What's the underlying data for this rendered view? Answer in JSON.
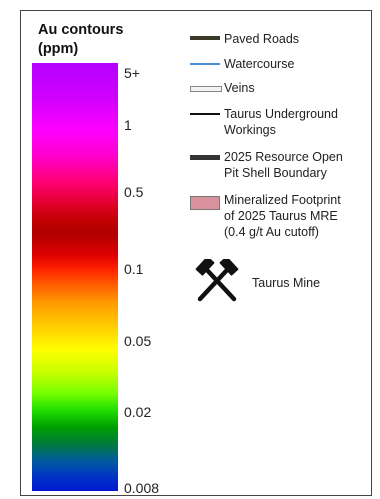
{
  "scale": {
    "title": "Au contours\n(ppm)",
    "ticks": [
      "5+",
      "1",
      "0.5",
      "0.1",
      "0.05",
      "0.02",
      "0.008"
    ]
  },
  "legend": {
    "items": [
      {
        "label": "Paved Roads",
        "icon": "paved-road-line",
        "color": "#3b3a28"
      },
      {
        "label": "Watercourse",
        "icon": "watercourse-line",
        "color": "#4a90d9"
      },
      {
        "label": "Veins",
        "icon": "vein-line",
        "color": "#e8e8e8"
      },
      {
        "label": "Taurus Underground\nWorkings",
        "icon": "underground-workings-line",
        "color": "#111111"
      },
      {
        "label": "2025 Resource Open\nPit Shell Boundary",
        "icon": "pit-shell-line",
        "color": "#333333"
      },
      {
        "label": "Mineralized Footprint\nof 2025 Taurus MRE\n(0.4 g/t Au cutoff)",
        "icon": "footprint-polygon",
        "color": "#d9919b"
      },
      {
        "label": "Taurus Mine",
        "icon": "crossed-hammers-icon",
        "color": "#111111"
      }
    ]
  }
}
